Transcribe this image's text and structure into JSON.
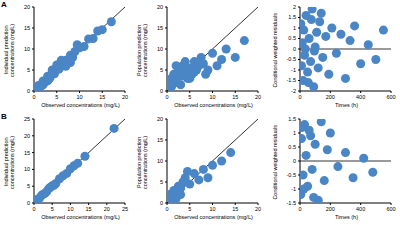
{
  "chart_data": [
    {
      "type": "scatter",
      "annotation": "A",
      "xlabel": "Observed concentrations (mg/L)",
      "ylabel": "Individual prediction concentrations (mg/L)",
      "x": [
        0.5,
        1,
        1.5,
        2,
        2.5,
        3,
        3.5,
        4,
        4.5,
        5,
        5.5,
        6,
        6.5,
        7,
        7.5,
        8,
        8.5,
        9,
        10,
        11,
        12,
        13,
        14,
        15,
        17,
        3,
        5,
        7,
        2,
        4,
        6,
        8,
        1.2,
        9.5
      ],
      "values": [
        0.7,
        1.3,
        1.2,
        2.4,
        2.2,
        3.5,
        3.1,
        4.4,
        4.1,
        5.3,
        5.2,
        6.4,
        6.1,
        7.3,
        7.0,
        8.5,
        8.0,
        9.4,
        10.3,
        10.6,
        12.4,
        12.5,
        14.3,
        14.6,
        16.5,
        2.4,
        6.2,
        5.9,
        1.5,
        5.0,
        7.3,
        6.8,
        0.8,
        11
      ],
      "xlim": [
        0,
        20
      ],
      "xticks": [
        0,
        5,
        10,
        15,
        20
      ],
      "ylim": [
        0,
        20
      ],
      "yticks": [
        0,
        5,
        10,
        15,
        20
      ],
      "color": "#4a86c5",
      "marker": "circle",
      "grid": false
    },
    {
      "type": "scatter",
      "xlabel": "Observed concentrations (mg/L)",
      "ylabel": "Population prediction concentrations (mg/L)",
      "x": [
        0.5,
        1,
        1.5,
        2,
        2.5,
        3,
        3.5,
        4,
        4.5,
        5,
        5.5,
        6,
        6.5,
        7,
        7.5,
        8,
        9,
        10,
        11,
        12,
        13,
        15,
        17,
        2,
        3,
        4,
        5,
        6,
        1,
        8.5
      ],
      "values": [
        2.5,
        3,
        4,
        2,
        5,
        3.5,
        6,
        4.5,
        3,
        5.5,
        4,
        7,
        5,
        6,
        8,
        6.5,
        5,
        9,
        6,
        7.5,
        10,
        8,
        12,
        6,
        1.5,
        7,
        3,
        4.5,
        1,
        4
      ],
      "xlim": [
        0,
        20
      ],
      "xticks": [
        0,
        5,
        10,
        15,
        20
      ],
      "ylim": [
        0,
        20
      ],
      "yticks": [
        0,
        5,
        10,
        15,
        20
      ],
      "color": "#4a86c5",
      "marker": "circle",
      "grid": false
    },
    {
      "type": "scatter",
      "xlabel": "Times (h)",
      "ylabel": "Conditional weighted residuals",
      "x": [
        5,
        10,
        15,
        20,
        25,
        30,
        40,
        50,
        60,
        70,
        80,
        90,
        100,
        110,
        120,
        130,
        150,
        170,
        190,
        210,
        240,
        270,
        300,
        330,
        360,
        400,
        450,
        500,
        550,
        35,
        55,
        75,
        95,
        140
      ],
      "values": [
        1.2,
        -0.8,
        0.3,
        -1.5,
        0.9,
        -0.3,
        1.6,
        -1.1,
        0.5,
        -0.6,
        1.9,
        -1.8,
        0.1,
        0.8,
        -0.9,
        1.3,
        -0.4,
        0.6,
        -1.2,
        1.0,
        -0.2,
        0.7,
        -1.4,
        0.4,
        1.1,
        -0.7,
        0.2,
        -0.5,
        0.9,
        0.0,
        -1.6,
        1.4,
        -0.1,
        1.7
      ],
      "xlim": [
        0,
        600
      ],
      "xticks": [
        0,
        200,
        400,
        600
      ],
      "ylim": [
        -2,
        2
      ],
      "yticks": [
        -2,
        -1.5,
        -1,
        -0.5,
        0,
        0.5,
        1,
        1.5,
        2
      ],
      "reference_y": 0,
      "color": "#4a86c5",
      "marker": "circle",
      "grid": false
    },
    {
      "type": "scatter",
      "annotation": "B",
      "xlabel": "Observed concentrations (mg/L)",
      "ylabel": "Individual prediction concentrations (mg/L)",
      "x": [
        0.5,
        1,
        1.5,
        2,
        3,
        4,
        5,
        6,
        7,
        8,
        9,
        10,
        11,
        12,
        14,
        22,
        2.5,
        3.5,
        4.5,
        5.5
      ],
      "values": [
        0.6,
        1.1,
        1.4,
        2.2,
        2.9,
        4.2,
        5.1,
        5.8,
        7.2,
        8.1,
        8.8,
        10.2,
        11.1,
        11.8,
        13.9,
        22.2,
        2.6,
        3.4,
        4.7,
        5.3
      ],
      "xlim": [
        0,
        25
      ],
      "xticks": [
        0,
        5,
        10,
        15,
        20,
        25
      ],
      "ylim": [
        0,
        25
      ],
      "yticks": [
        0,
        5,
        10,
        15,
        20,
        25
      ],
      "color": "#4a86c5",
      "marker": "circle",
      "grid": false
    },
    {
      "type": "scatter",
      "xlabel": "Observed concentrations (mg/L)",
      "ylabel": "Population prediction concentrations (mg/L)",
      "x": [
        0.5,
        1,
        1.5,
        2,
        2.5,
        3,
        3.5,
        4,
        5,
        6,
        7,
        8,
        9,
        10,
        12,
        14,
        2,
        3,
        4.5,
        1.2
      ],
      "values": [
        2,
        1.5,
        3,
        2.5,
        4,
        3.5,
        5,
        6,
        4.5,
        7,
        5.5,
        8,
        6,
        9,
        10,
        12,
        1,
        2,
        7.5,
        0.5
      ],
      "xlim": [
        0,
        20
      ],
      "xticks": [
        0,
        5,
        10,
        15,
        20
      ],
      "ylim": [
        0,
        20
      ],
      "yticks": [
        0,
        5,
        10,
        15,
        20
      ],
      "color": "#4a86c5",
      "marker": "circle",
      "grid": false
    },
    {
      "type": "scatter",
      "xlabel": "Times (h)",
      "ylabel": "Conditional weighted residuals",
      "x": [
        5,
        10,
        20,
        30,
        40,
        50,
        60,
        80,
        100,
        120,
        140,
        160,
        180,
        200,
        250,
        300,
        350,
        420,
        480,
        15,
        25,
        70,
        90
      ],
      "values": [
        -1.2,
        0.8,
        -0.5,
        1.3,
        0.2,
        -0.9,
        1.1,
        -0.3,
        0.6,
        -1.4,
        1.4,
        -0.7,
        0.4,
        1.0,
        -0.2,
        0.3,
        -0.6,
        0.1,
        -0.4,
        1.2,
        -1.0,
        0.9,
        -1.3
      ],
      "xlim": [
        0,
        600
      ],
      "xticks": [
        0,
        200,
        400,
        600
      ],
      "ylim": [
        -1.5,
        1.5
      ],
      "yticks": [
        -1.5,
        -1,
        -0.5,
        0,
        0.5,
        1,
        1.5
      ],
      "reference_y": 0,
      "color": "#4a86c5",
      "marker": "circle",
      "grid": false
    }
  ]
}
